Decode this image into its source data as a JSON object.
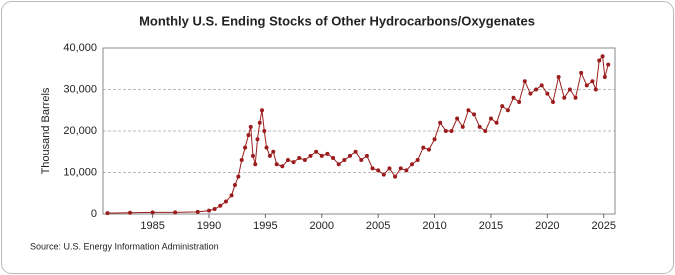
{
  "chart_data": {
    "type": "line",
    "title": "Monthly U.S. Ending Stocks of Other Hydrocarbons/Oxygenates",
    "y_label": "Thousand Barrels",
    "source": "Source: U.S. Energy Information Administration",
    "xlim": [
      1980.6,
      2026
    ],
    "xticks": [
      1985,
      1990,
      1995,
      2000,
      2005,
      2010,
      2015,
      2020,
      2025
    ],
    "ylim": [
      0,
      40000
    ],
    "yticks": [
      0,
      {
        "value": 10000,
        "label": "10,000"
      },
      {
        "value": 20000,
        "label": "20,000"
      },
      {
        "value": 30000,
        "label": "30,000"
      },
      {
        "value": 40000,
        "label": "40,000"
      }
    ],
    "grid": true,
    "x": [
      1981,
      1983,
      1985,
      1987,
      1989,
      1990,
      1990.5,
      1991,
      1991.5,
      1992,
      1992.3,
      1992.6,
      1992.9,
      1993.2,
      1993.5,
      1993.7,
      1993.9,
      1994.1,
      1994.3,
      1994.5,
      1994.7,
      1994.9,
      1995.1,
      1995.4,
      1995.7,
      1996,
      1996.5,
      1997,
      1997.5,
      1998,
      1998.5,
      1999,
      1999.5,
      2000,
      2000.5,
      2001,
      2001.5,
      2002,
      2002.5,
      2003,
      2003.5,
      2004,
      2004.5,
      2005,
      2005.5,
      2006,
      2006.5,
      2007,
      2007.5,
      2008,
      2008.5,
      2009,
      2009.5,
      2010,
      2010.5,
      2011,
      2011.5,
      2012,
      2012.5,
      2013,
      2013.5,
      2014,
      2014.5,
      2015,
      2015.5,
      2016,
      2016.5,
      2017,
      2017.5,
      2018,
      2018.5,
      2019,
      2019.5,
      2020,
      2020.5,
      2021,
      2021.5,
      2022,
      2022.5,
      2023,
      2023.5,
      2024,
      2024.3,
      2024.6,
      2024.9,
      2025.1,
      2025.4
    ],
    "series": [
      {
        "name": "Stocks",
        "color": "#9b1c1c",
        "values": [
          200,
          300,
          400,
          400,
          500,
          800,
          1200,
          2000,
          3000,
          4500,
          7000,
          9000,
          13000,
          16000,
          19000,
          21000,
          14000,
          12000,
          18000,
          22000,
          25000,
          20000,
          16000,
          14000,
          15000,
          12000,
          11500,
          13000,
          12500,
          13500,
          13000,
          14000,
          15000,
          14000,
          14500,
          13500,
          12000,
          13000,
          14000,
          15000,
          13000,
          14000,
          11000,
          10500,
          9500,
          11000,
          9000,
          11000,
          10500,
          12000,
          13000,
          16000,
          15500,
          18000,
          22000,
          20000,
          20000,
          23000,
          21000,
          25000,
          24000,
          21000,
          20000,
          23000,
          22000,
          26000,
          25000,
          28000,
          27000,
          32000,
          29000,
          30000,
          31000,
          29000,
          27000,
          33000,
          28000,
          30000,
          28000,
          34000,
          31000,
          32000,
          30000,
          37000,
          38000,
          33000,
          36000
        ]
      }
    ]
  }
}
